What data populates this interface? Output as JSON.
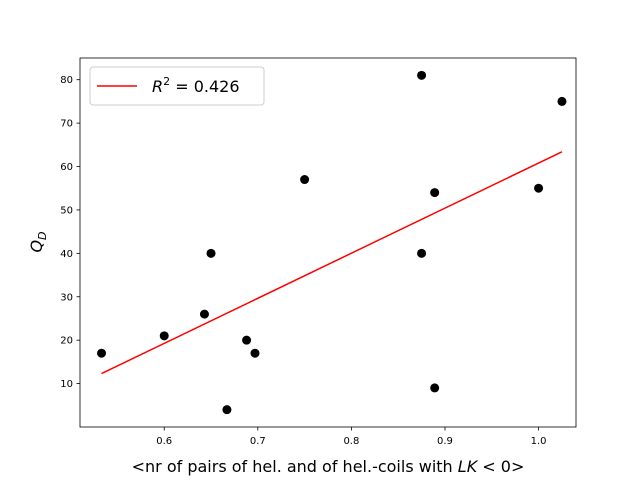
{
  "chart_data": {
    "type": "scatter",
    "xlabel": "<nr of pairs of hel. and of hel.-coils with LK < 0>",
    "xlabel_parts": {
      "prefix": "<nr of pairs of hel. and of hel.-coils with ",
      "math": "LK",
      "suffix": " < 0>"
    },
    "ylabel": "Q_D",
    "ylabel_parts": {
      "main": "Q",
      "sub": "D"
    },
    "xlim": [
      0.51,
      1.04
    ],
    "ylim": [
      0,
      85
    ],
    "xticks": [
      0.6,
      0.7,
      0.8,
      0.9,
      1.0
    ],
    "xtick_labels": [
      "0.6",
      "0.7",
      "0.8",
      "0.9",
      "1.0"
    ],
    "yticks": [
      10,
      20,
      30,
      40,
      50,
      60,
      70,
      80
    ],
    "ytick_labels": [
      "10",
      "20",
      "30",
      "40",
      "50",
      "60",
      "70",
      "80"
    ],
    "grid": false,
    "legend_placement": "top-left",
    "series": [
      {
        "kind": "points",
        "color": "#000000",
        "x": [
          0.533,
          0.6,
          0.643,
          0.65,
          0.667,
          0.688,
          0.697,
          0.75,
          0.875,
          0.875,
          0.889,
          0.889,
          1.0,
          1.025
        ],
        "y": [
          17,
          21,
          26,
          40,
          4,
          20,
          17,
          57,
          81,
          40,
          54,
          9,
          55,
          75
        ]
      },
      {
        "kind": "fit-line",
        "name": "R^2 = 0.426",
        "color": "#ff0000",
        "x": [
          0.533,
          1.025
        ],
        "y": [
          12.3,
          63.4
        ]
      }
    ],
    "legend": {
      "entries": [
        {
          "base": "R",
          "sup": "2",
          "rest": " = 0.426",
          "color": "#ff0000"
        }
      ]
    }
  }
}
